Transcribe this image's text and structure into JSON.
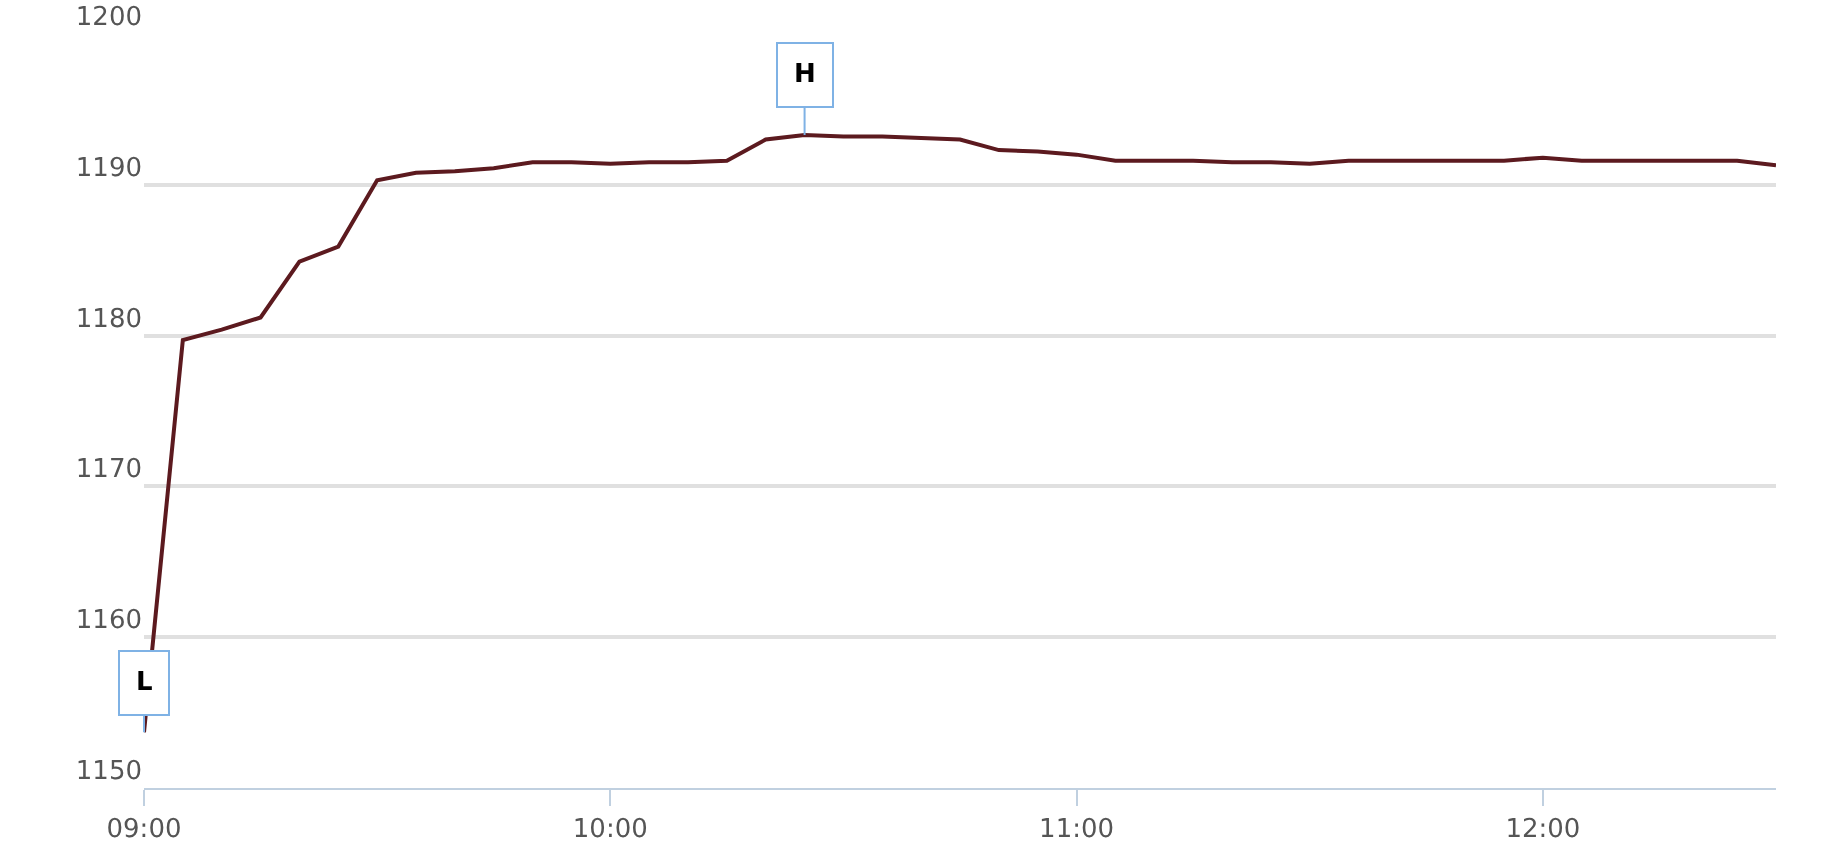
{
  "chart_data": {
    "type": "line",
    "x": [
      9,
      9.0833,
      9.1667,
      9.25,
      9.3333,
      9.4167,
      9.5,
      9.5833,
      9.6667,
      9.75,
      9.8333,
      9.9167,
      10,
      10.0833,
      10.1667,
      10.25,
      10.3333,
      10.4167,
      10.5,
      10.5833,
      10.6667,
      10.75,
      10.8333,
      10.9167,
      11,
      11.0833,
      11.1667,
      11.25,
      11.3333,
      11.4167,
      11.5,
      11.5833,
      11.6667,
      11.75,
      11.8333,
      11.9167,
      12,
      12.0833,
      12.1667,
      12.25,
      12.3333,
      12.4167,
      12.5
    ],
    "series": [
      {
        "color": "#5c1a1f",
        "values": [
          1153.7,
          1179.7,
          1180.4,
          1181.2,
          1184.9,
          1185.9,
          1190.3,
          1190.8,
          1190.9,
          1191.1,
          1191.5,
          1191.5,
          1191.4,
          1191.5,
          1191.5,
          1191.6,
          1193.0,
          1193.3,
          1193.2,
          1193.2,
          1193.1,
          1193.0,
          1192.3,
          1192.2,
          1192.0,
          1191.6,
          1191.6,
          1191.6,
          1191.5,
          1191.5,
          1191.4,
          1191.6,
          1191.6,
          1191.6,
          1191.6,
          1191.6,
          1191.8,
          1191.6,
          1191.6,
          1191.6,
          1191.6,
          1191.6,
          1191.3
        ]
      }
    ],
    "annotations": [
      {
        "text": "H",
        "x": 10.4167,
        "y": 1193.3
      },
      {
        "text": "L",
        "x": 9,
        "y": 1153.7
      }
    ],
    "xlim": [
      9,
      12.5
    ],
    "xticks": [
      {
        "value": 9,
        "label": "09:00"
      },
      {
        "value": 10,
        "label": "10:00"
      },
      {
        "value": 11,
        "label": "11:00"
      },
      {
        "value": 12,
        "label": "12:00"
      }
    ],
    "ylim": [
      1150,
      1200
    ],
    "yticks": [
      1150,
      1160,
      1170,
      1180,
      1190,
      1200
    ],
    "grid": "y",
    "marker": "none",
    "line_style": "solid"
  }
}
